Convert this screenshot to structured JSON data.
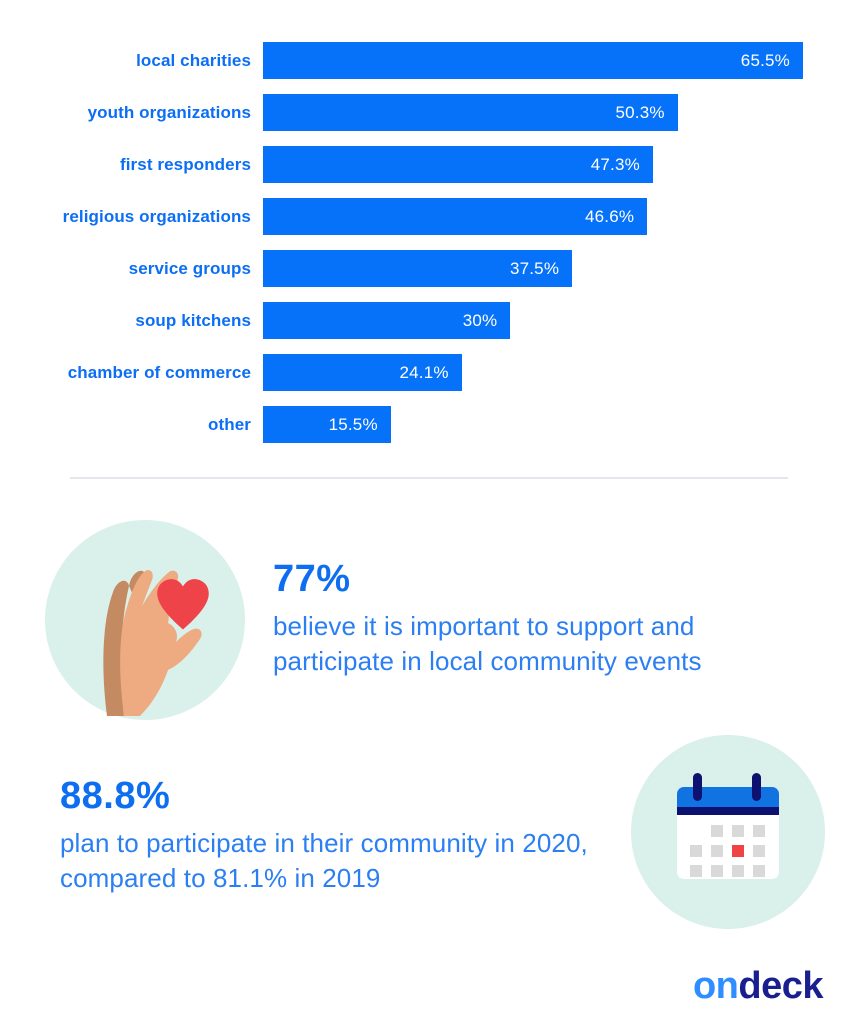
{
  "chart_data": {
    "type": "bar",
    "orientation": "horizontal",
    "title": "",
    "xlabel": "",
    "ylabel": "",
    "grid": false,
    "legend": "none",
    "xlim": [
      0,
      65.5
    ],
    "categories": [
      "local charities",
      "youth organizations",
      "first responders",
      "religious organizations",
      "service groups",
      "soup kitchens",
      "chamber of commerce",
      "other"
    ],
    "values": [
      65.5,
      50.3,
      47.3,
      46.6,
      37.5,
      30,
      24.1,
      15.5
    ],
    "value_labels": [
      "65.5%",
      "50.3%",
      "47.3%",
      "46.6%",
      "37.5%",
      "30%",
      "24.1%",
      "15.5%"
    ],
    "bar_color": "#0672f9",
    "category_label_color": "#0b6ef5",
    "value_label_color": "#ffffff"
  },
  "stats": [
    {
      "icon": "hand-holding-heart-icon",
      "value": "77%",
      "text": "believe it is important to support and participate in local community events"
    },
    {
      "icon": "calendar-icon",
      "value": "88.8%",
      "text": "plan to participate in their community in 2020, compared to 81.1% in 2019"
    }
  ],
  "footer": {
    "logo_on": "on",
    "logo_deck": "deck"
  },
  "colors": {
    "bar_blue": "#0672f9",
    "body_text_blue": "#2b7ff2",
    "stat_value_blue": "#0d6ff0",
    "mint_circle": "#d9f1ea",
    "heart_red": "#ee4348",
    "skin_light": "#eeab81",
    "skin_dark": "#c48b63",
    "calendar_blue": "#1173e2",
    "calendar_navy": "#0d1270",
    "calendar_gray": "#d9d9d9",
    "calendar_red": "#ef4444",
    "logo_light_blue": "#2e8eff",
    "logo_navy": "#1a1f8f",
    "divider_gray": "#e3e7eb"
  }
}
